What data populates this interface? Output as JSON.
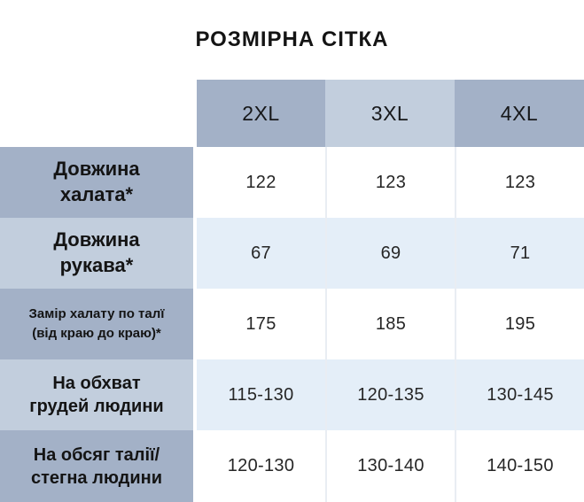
{
  "title": "РОЗМІРНА СІТКА",
  "colors": {
    "header_dark": "#a3b1c7",
    "header_light": "#c2cedd",
    "row_highlight_blue": "#e4eef8",
    "row_white": "#ffffff",
    "text_dark": "#141414"
  },
  "chart_data": {
    "type": "table",
    "title": "РОЗМІРНА СІТКА",
    "columns": [
      "2XL",
      "3XL",
      "4XL"
    ],
    "rows": [
      {
        "label": "Довжина халата*",
        "label_display": "Довжина\nхалата*",
        "values": [
          "122",
          "123",
          "123"
        ]
      },
      {
        "label": "Довжина рукава*",
        "label_display": "Довжина\nрукава*",
        "values": [
          "67",
          "69",
          "71"
        ]
      },
      {
        "label": "Замір халату по талї (від краю до краю)*",
        "label_display": "Замір халату по талї\n(від краю до краю)*",
        "values": [
          "175",
          "185",
          "195"
        ]
      },
      {
        "label": "На обхват грудей людини",
        "label_display": "На обхват\nгрудей людини",
        "values": [
          "115-130",
          "120-135",
          "130-145"
        ]
      },
      {
        "label": "На обсяг талії/стегна людини",
        "label_display": "На обсяг талії/\nстегна людини",
        "values": [
          "120-130",
          "130-140",
          "140-150"
        ]
      }
    ]
  }
}
